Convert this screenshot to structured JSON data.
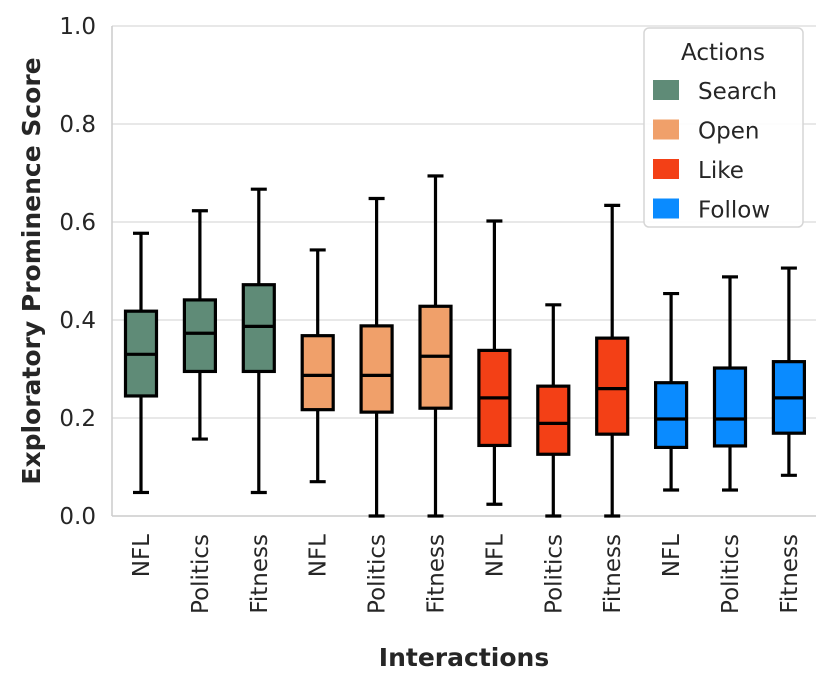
{
  "chart_data": {
    "type": "boxplot",
    "title": "",
    "xlabel": "Interactions",
    "ylabel": "Exploratory Prominence Score",
    "ylim": [
      0.0,
      1.0
    ],
    "yticks": [
      "0.0",
      "0.2",
      "0.4",
      "0.6",
      "0.8",
      "1.0"
    ],
    "grid": "horizontal",
    "legend": {
      "title": "Actions",
      "position": "top-right",
      "entries": [
        {
          "name": "Search",
          "color": "#5f8b77"
        },
        {
          "name": "Open",
          "color": "#f0a06a"
        },
        {
          "name": "Like",
          "color": "#f34016"
        },
        {
          "name": "Follow",
          "color": "#0a8bff"
        }
      ]
    },
    "categories": [
      "NFL",
      "Politics",
      "Fitness",
      "NFL",
      "Politics",
      "Fitness",
      "NFL",
      "Politics",
      "Fitness",
      "NFL",
      "Politics",
      "Fitness"
    ],
    "boxes": [
      {
        "category": "NFL",
        "action": "Search",
        "min": 0.048,
        "q1": 0.245,
        "median": 0.33,
        "q3": 0.418,
        "max": 0.577
      },
      {
        "category": "Politics",
        "action": "Search",
        "min": 0.157,
        "q1": 0.295,
        "median": 0.373,
        "q3": 0.441,
        "max": 0.623
      },
      {
        "category": "Fitness",
        "action": "Search",
        "min": 0.048,
        "q1": 0.295,
        "median": 0.387,
        "q3": 0.472,
        "max": 0.667
      },
      {
        "category": "NFL",
        "action": "Open",
        "min": 0.07,
        "q1": 0.217,
        "median": 0.287,
        "q3": 0.368,
        "max": 0.543
      },
      {
        "category": "Politics",
        "action": "Open",
        "min": 0.0,
        "q1": 0.212,
        "median": 0.287,
        "q3": 0.388,
        "max": 0.648
      },
      {
        "category": "Fitness",
        "action": "Open",
        "min": 0.0,
        "q1": 0.22,
        "median": 0.326,
        "q3": 0.428,
        "max": 0.694
      },
      {
        "category": "NFL",
        "action": "Like",
        "min": 0.024,
        "q1": 0.144,
        "median": 0.241,
        "q3": 0.338,
        "max": 0.602
      },
      {
        "category": "Politics",
        "action": "Like",
        "min": 0.0,
        "q1": 0.126,
        "median": 0.189,
        "q3": 0.265,
        "max": 0.431
      },
      {
        "category": "Fitness",
        "action": "Like",
        "min": 0.0,
        "q1": 0.167,
        "median": 0.26,
        "q3": 0.363,
        "max": 0.634
      },
      {
        "category": "NFL",
        "action": "Follow",
        "min": 0.053,
        "q1": 0.14,
        "median": 0.198,
        "q3": 0.272,
        "max": 0.454
      },
      {
        "category": "Politics",
        "action": "Follow",
        "min": 0.053,
        "q1": 0.143,
        "median": 0.198,
        "q3": 0.302,
        "max": 0.488
      },
      {
        "category": "Fitness",
        "action": "Follow",
        "min": 0.083,
        "q1": 0.169,
        "median": 0.241,
        "q3": 0.315,
        "max": 0.506
      }
    ]
  }
}
